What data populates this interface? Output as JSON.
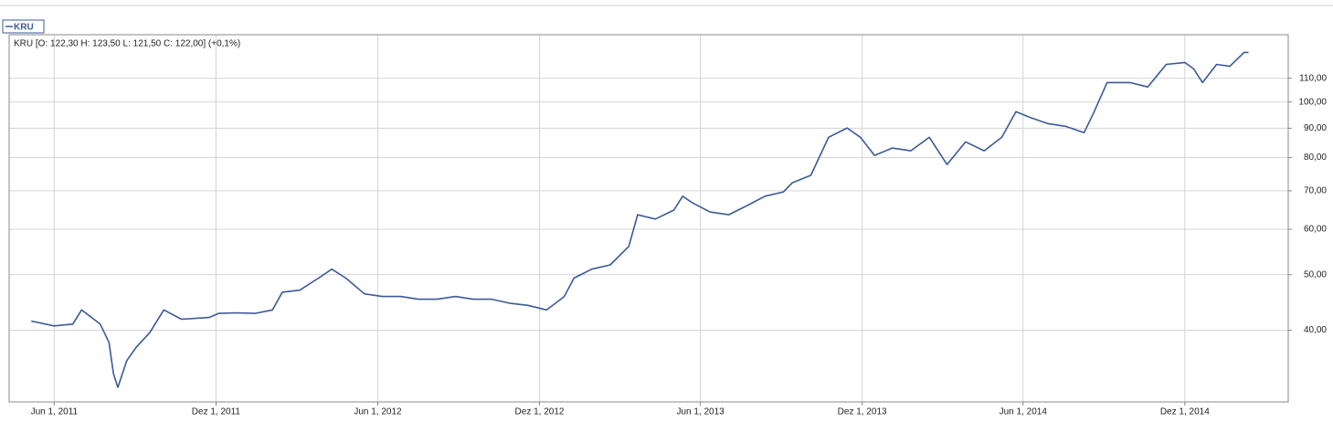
{
  "chart_data": {
    "type": "line",
    "info": "KRU [O: 122,30  H: 123,50  L: 121,50  C: 122,00] (+0,1%)",
    "x": [
      "2011-05-06",
      "2011-06-01",
      "2011-06-22",
      "2011-07-02",
      "2011-07-23",
      "2011-08-02",
      "2011-08-07",
      "2011-08-12",
      "2011-08-22",
      "2011-09-02",
      "2011-09-17",
      "2011-10-03",
      "2011-10-23",
      "2011-11-23",
      "2011-12-04",
      "2011-12-24",
      "2012-01-14",
      "2012-02-03",
      "2012-02-14",
      "2012-03-05",
      "2012-03-26",
      "2012-04-10",
      "2012-04-26",
      "2012-05-17",
      "2012-06-06",
      "2012-06-27",
      "2012-07-17",
      "2012-08-07",
      "2012-08-28",
      "2012-09-17",
      "2012-10-08",
      "2012-10-28",
      "2012-11-18",
      "2012-12-09",
      "2012-12-29",
      "2013-01-09",
      "2013-01-29",
      "2013-02-19",
      "2013-03-12",
      "2013-03-22",
      "2013-04-11",
      "2013-05-02",
      "2013-05-12",
      "2013-05-23",
      "2013-06-12",
      "2013-07-03",
      "2013-07-24",
      "2013-08-13",
      "2013-09-03",
      "2013-09-13",
      "2013-10-04",
      "2013-10-24",
      "2013-11-14",
      "2013-11-29",
      "2013-12-15",
      "2014-01-04",
      "2014-01-25",
      "2014-02-15",
      "2014-03-07",
      "2014-03-28",
      "2014-04-18",
      "2014-05-08",
      "2014-05-24",
      "2014-06-08",
      "2014-06-29",
      "2014-07-19",
      "2014-08-09",
      "2014-08-19",
      "2014-09-04",
      "2014-09-30",
      "2014-10-20",
      "2014-11-10",
      "2014-12-01",
      "2014-12-11",
      "2014-12-21",
      "2015-01-06",
      "2015-01-21",
      "2015-02-06",
      "2015-02-11"
    ],
    "series": [
      {
        "name": "KRU",
        "color": "#3a5a98",
        "values": [
          41.5,
          40.7,
          41.0,
          43.4,
          41.0,
          38.1,
          33.6,
          31.8,
          35.4,
          37.4,
          39.6,
          43.4,
          41.8,
          42.1,
          42.8,
          42.9,
          42.8,
          43.4,
          46.6,
          47.0,
          49.3,
          51.1,
          49.3,
          46.3,
          45.8,
          45.8,
          45.3,
          45.3,
          45.8,
          45.3,
          45.3,
          44.6,
          44.2,
          43.4,
          45.8,
          49.3,
          51.1,
          52.0,
          56.0,
          63.6,
          62.5,
          64.8,
          68.5,
          66.7,
          64.3,
          63.6,
          66.0,
          68.5,
          69.7,
          72.3,
          74.5,
          86.8,
          90.1,
          86.8,
          80.7,
          83.1,
          82.2,
          86.8,
          77.8,
          85.2,
          82.2,
          86.8,
          96.2,
          94.1,
          91.7,
          90.7,
          88.4,
          95.1,
          108.1,
          108.1,
          106.2,
          116.3,
          117.2,
          114.2,
          108.1,
          116.3,
          115.4,
          122.0,
          122.0
        ]
      }
    ],
    "xlim": [
      "2011-04-11",
      "2015-03-28"
    ],
    "xticks": [
      {
        "value": "2011-06-01",
        "label": "Jun 1, 2011"
      },
      {
        "value": "2011-12-01",
        "label": "Dez 1, 2011"
      },
      {
        "value": "2012-06-01",
        "label": "Jun 1, 2012"
      },
      {
        "value": "2012-12-01",
        "label": "Dez 1, 2012"
      },
      {
        "value": "2013-06-01",
        "label": "Jun 1, 2013"
      },
      {
        "value": "2013-12-01",
        "label": "Dez 1, 2013"
      },
      {
        "value": "2014-06-01",
        "label": "Jun 1, 2014"
      },
      {
        "value": "2014-12-01",
        "label": "Dez 1, 2014"
      }
    ],
    "ylim": [
      30,
      131
    ],
    "yticks": [
      {
        "value": 40,
        "label": "40,00"
      },
      {
        "value": 50,
        "label": "50,00"
      },
      {
        "value": 60,
        "label": "60,00"
      },
      {
        "value": 70,
        "label": "70,00"
      },
      {
        "value": 80,
        "label": "80,00"
      },
      {
        "value": 90,
        "label": "90,00"
      },
      {
        "value": 100,
        "label": "100,00"
      },
      {
        "value": 110,
        "label": "110,00"
      }
    ],
    "log_y": true,
    "grid": true
  }
}
